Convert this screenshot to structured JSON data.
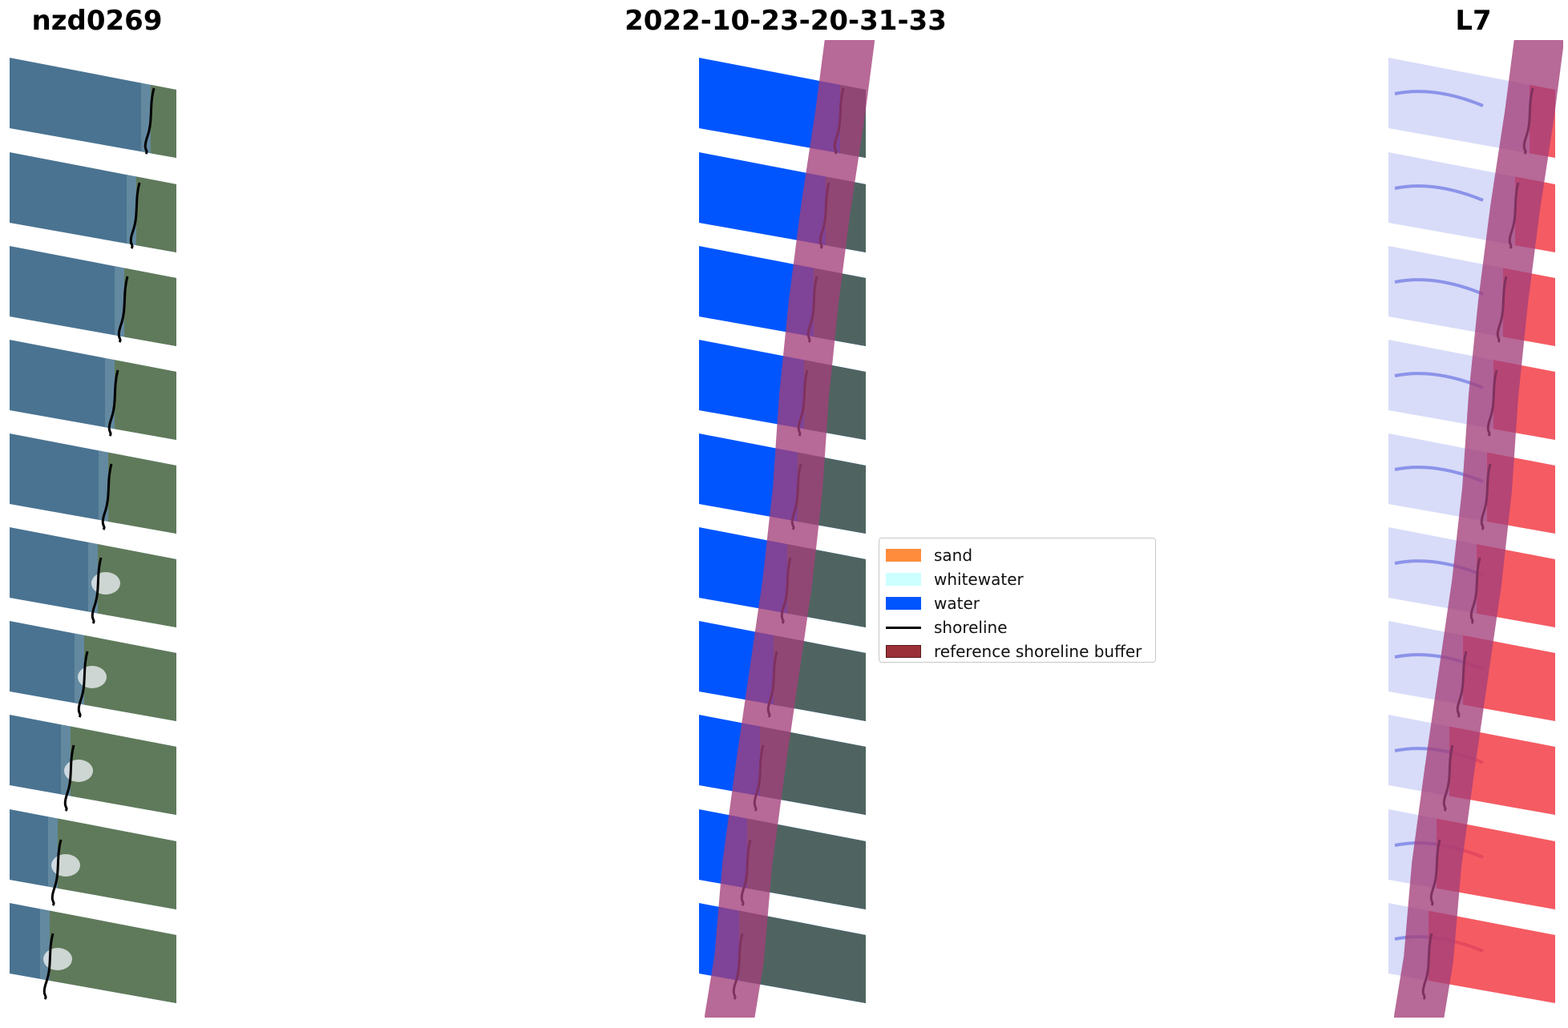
{
  "titles": {
    "site": "nzd0269",
    "date": "2022-10-23-20-31-33",
    "satellite": "L7"
  },
  "legend": {
    "items": [
      {
        "key": "sand",
        "label": "sand",
        "color": "#ff8c3c",
        "kind": "patch"
      },
      {
        "key": "whitewater",
        "label": "whitewater",
        "color": "#ccffff",
        "kind": "patch"
      },
      {
        "key": "water",
        "label": "water",
        "color": "#0055ff",
        "kind": "patch"
      },
      {
        "key": "shoreline",
        "label": "shoreline",
        "color": "#000000",
        "kind": "line"
      },
      {
        "key": "buffer",
        "label": "reference shoreline buffer",
        "color": "#9b3038",
        "kind": "patch"
      }
    ]
  },
  "colors": {
    "rgb_sea": "#4a7391",
    "rgb_land": "#5f7a5a",
    "water_class": "#0055ff",
    "land_class": "#4f6460",
    "buffer_overlay": "#a33f7a",
    "mndwi_water": "#d8dcf8",
    "mndwi_land": "#ff3030"
  }
}
